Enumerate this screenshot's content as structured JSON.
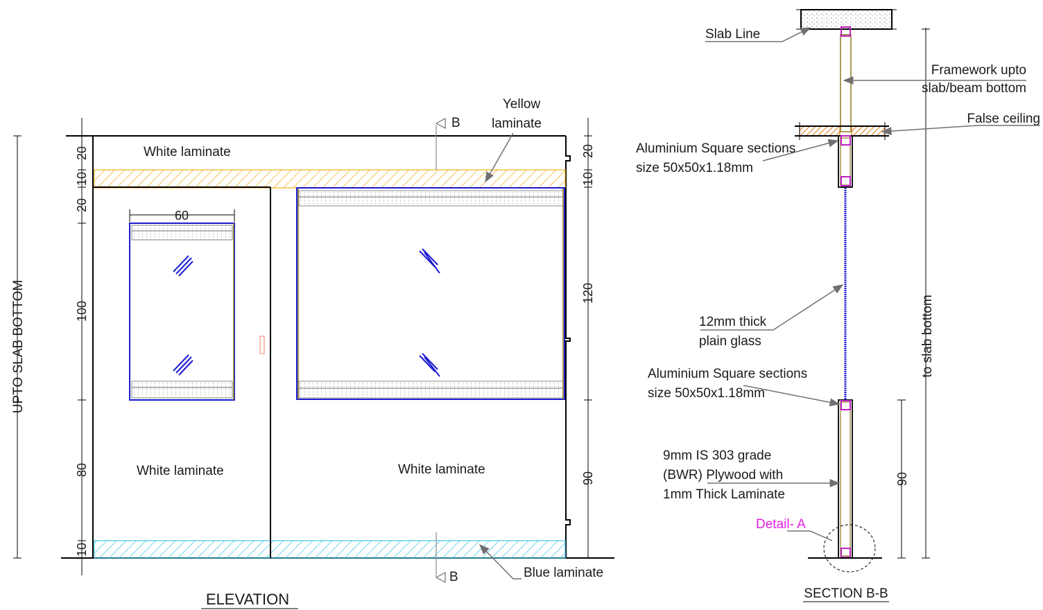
{
  "elevation": {
    "title": "ELEVATION",
    "side_label": "UPTO SLAB BOTTOM",
    "labels": {
      "white_top": "White laminate",
      "yellow": [
        "Yellow",
        "laminate"
      ],
      "white_left": "White laminate",
      "white_right": "White laminate",
      "blue": "Blue laminate"
    },
    "section_marker": "B",
    "dims_left": [
      "20",
      "10",
      "20",
      "100",
      "80",
      "10"
    ],
    "dims_right": [
      "20",
      "10",
      "120",
      "90"
    ],
    "dim_window_width": "60"
  },
  "section": {
    "title": "SECTION B-B",
    "labels": {
      "slab_line": "Slab Line",
      "framework": [
        "Framework upto",
        "slab/beam bottom"
      ],
      "false_ceiling": "False ceiling",
      "alu_top": [
        "Aluminium Square  sections",
        "size 50x50x1.18mm"
      ],
      "glass": [
        "12mm thick",
        "plain glass"
      ],
      "alu_mid": [
        "Aluminium Square sections",
        "size 50x50x1.18mm"
      ],
      "plywood": [
        "9mm IS 303 grade",
        "(BWR) Plywood with",
        "1mm Thick Laminate"
      ],
      "detail": "Detail- A"
    },
    "dim_right": "90",
    "dim_slab": "to slab bottom"
  },
  "colors": {
    "yellow_hatch": "#f0b020",
    "blue_hatch": "#40c8e8",
    "glass": "#1a1ad0",
    "aluminium": "#c020c0",
    "ceiling": "#e07a10"
  }
}
